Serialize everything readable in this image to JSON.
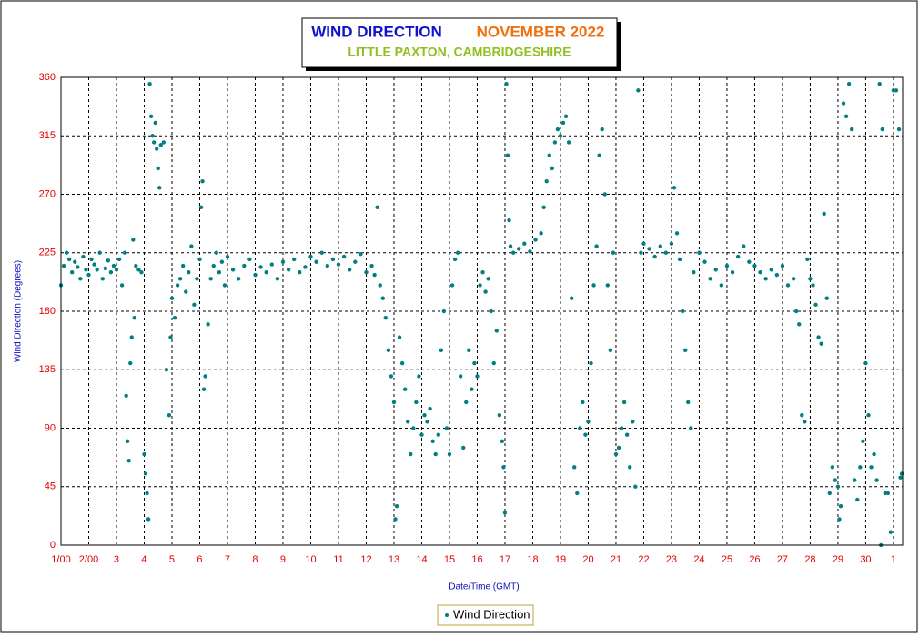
{
  "chart_data": {
    "type": "scatter",
    "title": "WIND DIRECTION",
    "period": "NOVEMBER 2022",
    "subtitle": "LITTLE PAXTON, CAMBRIDGESHIRE",
    "xlabel": "Date/Time (GMT)",
    "ylabel": "Wind Direction (Degrees)",
    "grid": true,
    "legend": "bottom",
    "xlim": [
      0,
      30.33
    ],
    "ylim": [
      0,
      360
    ],
    "yticks": [
      0,
      45,
      90,
      135,
      180,
      225,
      270,
      315,
      360
    ],
    "xticks": [
      {
        "value": 0,
        "label": "1/00"
      },
      {
        "value": 1,
        "label": "2/00"
      },
      {
        "value": 2,
        "label": "3"
      },
      {
        "value": 3,
        "label": "4"
      },
      {
        "value": 4,
        "label": "5"
      },
      {
        "value": 5,
        "label": "6"
      },
      {
        "value": 6,
        "label": "7"
      },
      {
        "value": 7,
        "label": "8"
      },
      {
        "value": 8,
        "label": "9"
      },
      {
        "value": 9,
        "label": "10"
      },
      {
        "value": 10,
        "label": "11"
      },
      {
        "value": 11,
        "label": "12"
      },
      {
        "value": 12,
        "label": "13"
      },
      {
        "value": 13,
        "label": "14"
      },
      {
        "value": 14,
        "label": "15"
      },
      {
        "value": 15,
        "label": "16"
      },
      {
        "value": 16,
        "label": "17"
      },
      {
        "value": 17,
        "label": "18"
      },
      {
        "value": 18,
        "label": "19"
      },
      {
        "value": 19,
        "label": "20"
      },
      {
        "value": 20,
        "label": "21"
      },
      {
        "value": 21,
        "label": "22"
      },
      {
        "value": 22,
        "label": "23"
      },
      {
        "value": 23,
        "label": "24"
      },
      {
        "value": 24,
        "label": "25"
      },
      {
        "value": 25,
        "label": "26"
      },
      {
        "value": 26,
        "label": "27"
      },
      {
        "value": 27,
        "label": "28"
      },
      {
        "value": 28,
        "label": "29"
      },
      {
        "value": 29,
        "label": "30"
      },
      {
        "value": 30,
        "label": "1"
      }
    ],
    "series": [
      {
        "name": "Wind Direction",
        "color": "#008080",
        "x": [
          0,
          0.1,
          0.2,
          0.3,
          0.4,
          0.5,
          0.6,
          0.7,
          0.8,
          0.9,
          1.0,
          1.1,
          1.2,
          1.3,
          1.4,
          1.5,
          1.6,
          1.7,
          1.8,
          1.9,
          2.0,
          2.1,
          2.2,
          2.3,
          2.35,
          2.4,
          2.45,
          2.5,
          2.55,
          2.6,
          2.65,
          2.7,
          2.8,
          2.9,
          3.0,
          3.05,
          3.1,
          3.15,
          3.2,
          3.25,
          3.3,
          3.35,
          3.4,
          3.45,
          3.5,
          3.55,
          3.6,
          3.7,
          3.8,
          3.9,
          3.95,
          4.0,
          4.1,
          4.2,
          4.3,
          4.4,
          4.5,
          4.6,
          4.7,
          4.8,
          4.9,
          5.0,
          5.05,
          5.1,
          5.15,
          5.2,
          5.3,
          5.4,
          5.5,
          5.6,
          5.7,
          5.8,
          5.9,
          6.0,
          6.2,
          6.4,
          6.6,
          6.8,
          7.0,
          7.2,
          7.4,
          7.6,
          7.8,
          8.0,
          8.2,
          8.4,
          8.6,
          8.8,
          9.0,
          9.2,
          9.4,
          9.6,
          9.8,
          10.0,
          10.2,
          10.4,
          10.6,
          10.8,
          11.0,
          11.2,
          11.3,
          11.4,
          11.5,
          11.6,
          11.7,
          11.8,
          11.9,
          12.0,
          12.05,
          12.1,
          12.2,
          12.3,
          12.4,
          12.5,
          12.6,
          12.7,
          12.8,
          12.9,
          13.0,
          13.1,
          13.2,
          13.3,
          13.4,
          13.5,
          13.6,
          13.7,
          13.8,
          13.9,
          14.0,
          14.1,
          14.2,
          14.3,
          14.4,
          14.5,
          14.6,
          14.7,
          14.8,
          14.9,
          15.0,
          15.1,
          15.2,
          15.3,
          15.4,
          15.5,
          15.6,
          15.7,
          15.8,
          15.9,
          15.95,
          16.0,
          16.05,
          16.1,
          16.15,
          16.2,
          16.3,
          16.5,
          16.7,
          16.9,
          17.1,
          17.3,
          17.4,
          17.5,
          17.6,
          17.7,
          17.8,
          17.9,
          18.0,
          18.1,
          18.2,
          18.3,
          18.4,
          18.5,
          18.6,
          18.7,
          18.8,
          18.9,
          19.0,
          19.1,
          19.2,
          19.3,
          19.4,
          19.5,
          19.6,
          19.7,
          19.8,
          19.9,
          20.0,
          20.1,
          20.2,
          20.3,
          20.4,
          20.5,
          20.6,
          20.7,
          20.8,
          20.9,
          21.0,
          21.2,
          21.4,
          21.6,
          21.8,
          22.0,
          22.1,
          22.2,
          22.3,
          22.4,
          22.5,
          22.6,
          22.7,
          22.8,
          23.0,
          23.2,
          23.4,
          23.6,
          23.8,
          24.0,
          24.2,
          24.4,
          24.6,
          24.8,
          25.0,
          25.2,
          25.4,
          25.6,
          25.8,
          26.0,
          26.2,
          26.4,
          26.5,
          26.6,
          26.7,
          26.8,
          26.9,
          27.0,
          27.1,
          27.2,
          27.3,
          27.4,
          27.5,
          27.6,
          27.7,
          27.8,
          27.9,
          28.0,
          28.05,
          28.1,
          28.2,
          28.3,
          28.4,
          28.5,
          28.6,
          28.7,
          28.8,
          28.9,
          29.0,
          29.1,
          29.2,
          29.3,
          29.4,
          29.5,
          29.6,
          29.7,
          29.8,
          29.9,
          30.0,
          30.1,
          30.2,
          30.25,
          30.3,
          29.55
        ],
        "values": [
          200,
          215,
          225,
          220,
          210,
          218,
          214,
          205,
          222,
          212,
          208,
          220,
          216,
          212,
          225,
          205,
          213,
          219,
          210,
          215,
          212,
          220,
          200,
          225,
          115,
          80,
          65,
          140,
          160,
          235,
          175,
          215,
          212,
          210,
          70,
          55,
          40,
          20,
          355,
          330,
          315,
          310,
          325,
          305,
          290,
          275,
          308,
          310,
          135,
          100,
          160,
          190,
          175,
          200,
          205,
          215,
          195,
          210,
          230,
          185,
          205,
          220,
          260,
          280,
          120,
          130,
          170,
          205,
          215,
          225,
          210,
          218,
          200,
          222,
          212,
          205,
          215,
          220,
          208,
          214,
          210,
          216,
          205,
          218,
          212,
          220,
          210,
          214,
          222,
          218,
          225,
          215,
          220,
          216,
          222,
          212,
          218,
          224,
          210,
          215,
          208,
          260,
          200,
          190,
          175,
          150,
          130,
          110,
          20,
          30,
          160,
          140,
          120,
          95,
          70,
          90,
          110,
          130,
          85,
          100,
          95,
          105,
          80,
          70,
          85,
          150,
          180,
          90,
          70,
          200,
          220,
          225,
          130,
          75,
          110,
          150,
          120,
          140,
          130,
          200,
          210,
          195,
          205,
          180,
          140,
          165,
          100,
          80,
          60,
          25,
          355,
          300,
          250,
          230,
          225,
          228,
          232,
          226,
          235,
          240,
          260,
          280,
          300,
          290,
          310,
          320,
          315,
          325,
          330,
          310,
          190,
          60,
          40,
          90,
          110,
          85,
          95,
          140,
          200,
          230,
          300,
          320,
          270,
          200,
          150,
          225,
          70,
          75,
          90,
          110,
          85,
          60,
          95,
          45,
          350,
          225,
          232,
          228,
          222,
          230,
          225,
          232,
          275,
          240,
          220,
          180,
          150,
          110,
          90,
          210,
          225,
          218,
          205,
          212,
          200,
          215,
          210,
          222,
          230,
          218,
          215,
          210,
          205,
          212,
          208,
          215,
          200,
          205,
          180,
          170,
          100,
          95,
          220,
          205,
          200,
          185,
          160,
          155,
          255,
          190,
          40,
          60,
          50,
          45,
          20,
          30,
          340,
          330,
          355,
          320,
          50,
          35,
          60,
          80,
          140,
          100,
          60,
          70,
          50,
          355,
          320,
          40,
          40,
          10,
          350,
          350,
          320,
          52,
          55,
          0
        ]
      }
    ]
  }
}
